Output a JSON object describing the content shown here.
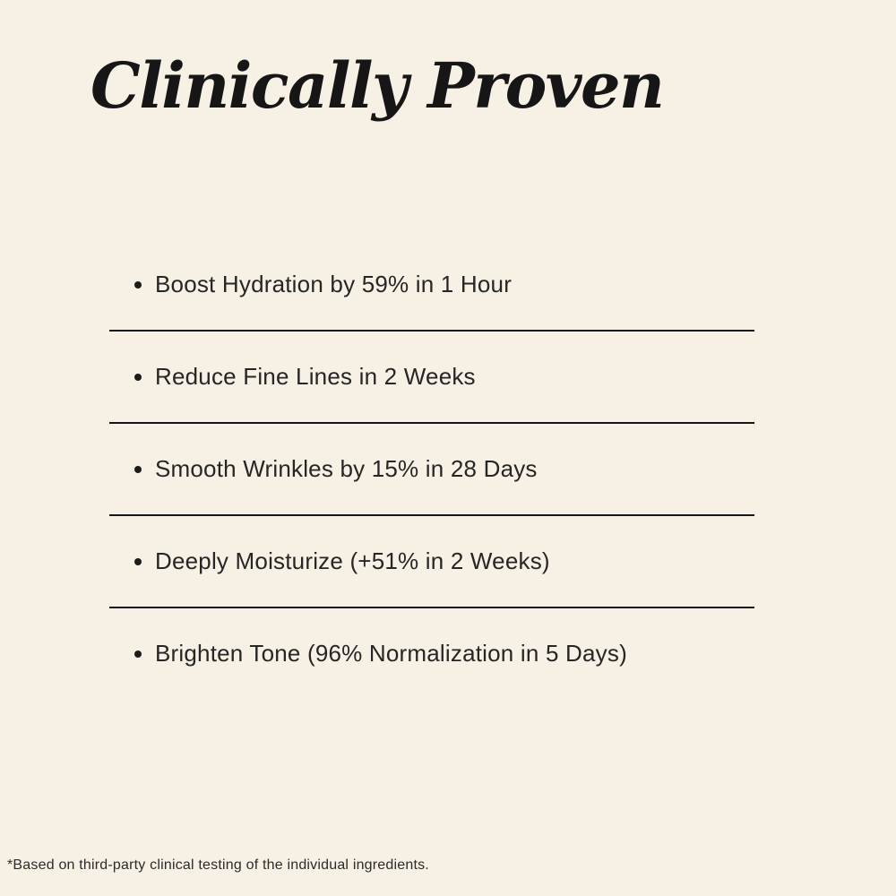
{
  "page": {
    "background_color": "#f7f0e4",
    "heading_color": "#161616",
    "text_color": "#262626",
    "divider_color": "#161616"
  },
  "heading": {
    "title": "Clinically Proven"
  },
  "list": {
    "items": [
      "Boost Hydration by 59% in 1 Hour",
      "Reduce Fine Lines in 2 Weeks",
      "Smooth Wrinkles by 15% in 28 Days",
      "Deeply Moisturize (+51% in 2 Weeks)",
      "Brighten Tone (96% Normalization in 5 Days)"
    ]
  },
  "footnote": {
    "text": "*Based on third-party clinical testing of the individual ingredients."
  }
}
